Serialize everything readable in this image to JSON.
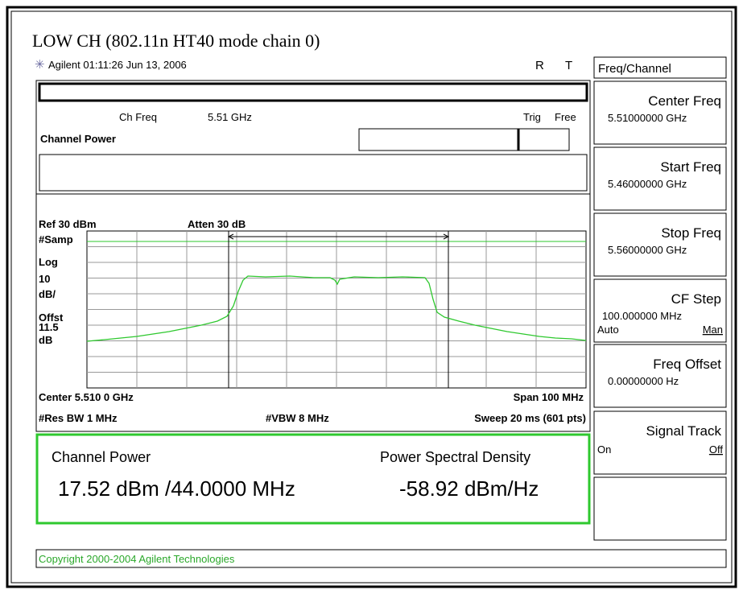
{
  "header": {
    "title": "LOW CH (802.11n HT40 mode chain 0)"
  },
  "status": {
    "datetime": "Agilent 01:11:26 Jun 13, 2006",
    "r": "R",
    "t": "T"
  },
  "screen": {
    "ch_freq_label": "Ch Freq",
    "ch_freq": "5.51 GHz",
    "trig": "Trig",
    "trig_mode": "Free",
    "measurement": "Channel Power",
    "ref": "Ref 30 dBm",
    "atten": "Atten 30 dB",
    "left_labels": [
      "#Samp",
      "Log",
      "10",
      "dB/",
      "Offst",
      "11.5",
      "dB"
    ],
    "center": "Center 5.510 0 GHz",
    "span": "Span 100 MHz",
    "res_bw": "#Res BW 1 MHz",
    "vbw": "#VBW 8 MHz",
    "sweep": "Sweep 20 ms (601 pts)"
  },
  "results": {
    "power_label": "Channel Power",
    "psd_label": "Power Spectral Density",
    "power": "17.52 dBm /44.0000 MHz",
    "psd": "-58.92 dBm/Hz"
  },
  "footer": {
    "copyright": "Copyright 2000-2004 Agilent Technologies"
  },
  "menu": {
    "title": "Freq/Channel",
    "keys": [
      {
        "label": "Center Freq",
        "value": "5.51000000 GHz"
      },
      {
        "label": "Start Freq",
        "value": "5.46000000 GHz"
      },
      {
        "label": "Stop Freq",
        "value": "5.56000000 GHz"
      },
      {
        "label": "CF Step",
        "value": "100.000000 MHz",
        "option_a": "Auto",
        "option_b": "Man"
      },
      {
        "label": "Freq Offset",
        "value": "0.00000000  Hz"
      },
      {
        "label": "Signal Track",
        "option_a": "On",
        "option_b": "Off"
      }
    ]
  }
}
